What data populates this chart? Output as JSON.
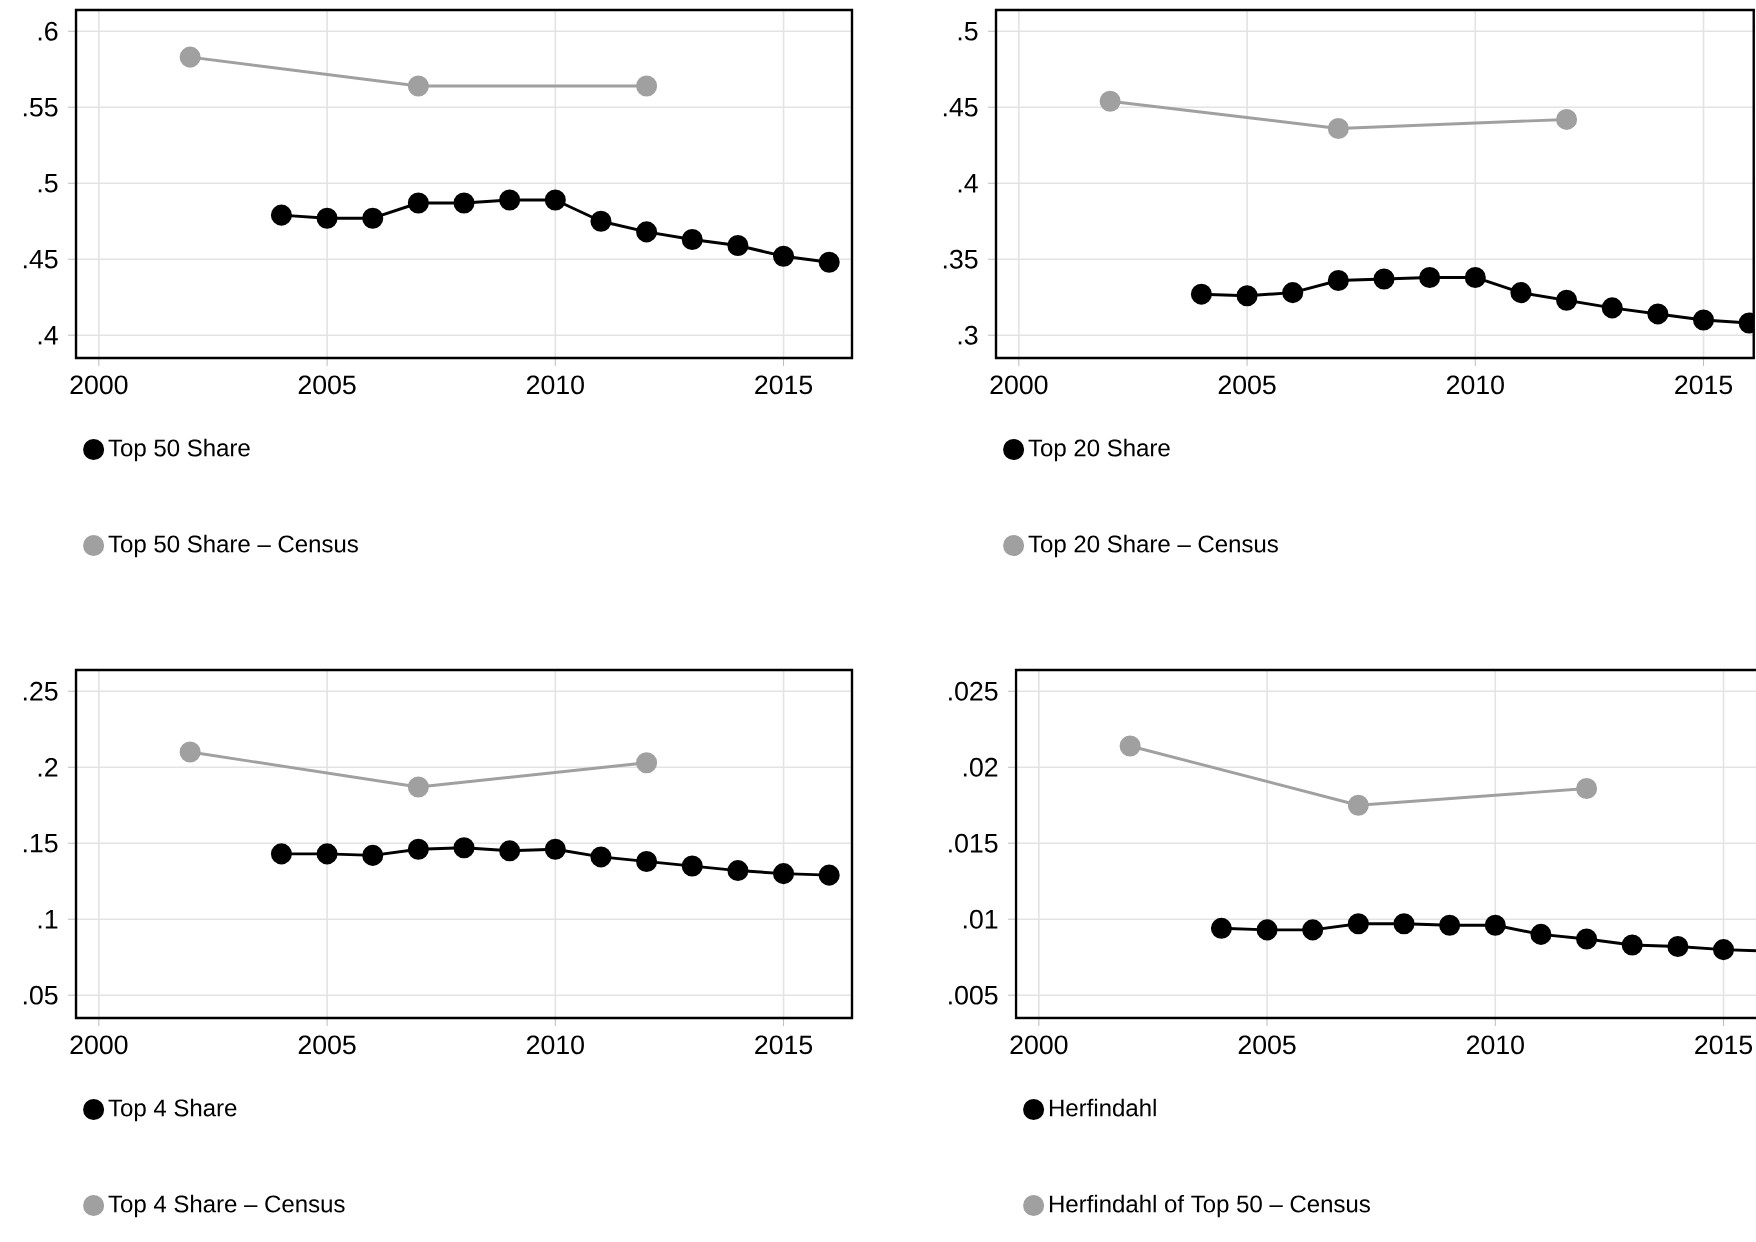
{
  "chart_data": [
    {
      "type": "line",
      "x": [
        2004,
        2005,
        2006,
        2007,
        2008,
        2009,
        2010,
        2011,
        2012,
        2013,
        2014,
        2015,
        2016
      ],
      "series": [
        {
          "name": "Top 50 Share",
          "color": "#000000",
          "values": [
            0.479,
            0.477,
            0.477,
            0.487,
            0.487,
            0.489,
            0.489,
            0.475,
            0.468,
            0.463,
            0.459,
            0.452,
            0.448
          ]
        },
        {
          "name": "Top 50 Share – Census",
          "color": "#a0a0a0",
          "x": [
            2002,
            2007,
            2012
          ],
          "values": [
            0.583,
            0.564,
            0.564
          ]
        }
      ],
      "xlim": [
        1999.5,
        2016.5
      ],
      "xticks": [
        2000,
        2005,
        2010,
        2015
      ],
      "ylim": [
        0.385,
        0.614
      ],
      "yticks": [
        {
          "value": 0.4,
          "label": ".4"
        },
        {
          "value": 0.45,
          "label": ".45"
        },
        {
          "value": 0.5,
          "label": ".5"
        },
        {
          "value": 0.55,
          "label": ".55"
        },
        {
          "value": 0.6,
          "label": ".6"
        }
      ],
      "grid": true,
      "legend": "bottom",
      "marker": "circle"
    },
    {
      "type": "line",
      "x": [
        2004,
        2005,
        2006,
        2007,
        2008,
        2009,
        2010,
        2011,
        2012,
        2013,
        2014,
        2015,
        2016
      ],
      "series": [
        {
          "name": "Top 20 Share",
          "color": "#000000",
          "values": [
            0.327,
            0.326,
            0.328,
            0.336,
            0.337,
            0.338,
            0.338,
            0.328,
            0.323,
            0.318,
            0.314,
            0.31,
            0.308
          ]
        },
        {
          "name": "Top 20 Share – Census",
          "color": "#a0a0a0",
          "x": [
            2002,
            2007,
            2012
          ],
          "values": [
            0.454,
            0.436,
            0.442
          ]
        }
      ],
      "xlim": [
        1999.5,
        2016.1
      ],
      "xticks": [
        2000,
        2005,
        2010,
        2015
      ],
      "ylim": [
        0.285,
        0.514
      ],
      "yticks": [
        {
          "value": 0.3,
          "label": ".3"
        },
        {
          "value": 0.35,
          "label": ".35"
        },
        {
          "value": 0.4,
          "label": ".4"
        },
        {
          "value": 0.45,
          "label": ".45"
        },
        {
          "value": 0.5,
          "label": ".5"
        }
      ],
      "grid": true,
      "legend": "bottom",
      "marker": "circle"
    },
    {
      "type": "line",
      "x": [
        2004,
        2005,
        2006,
        2007,
        2008,
        2009,
        2010,
        2011,
        2012,
        2013,
        2014,
        2015,
        2016
      ],
      "series": [
        {
          "name": "Top 4 Share",
          "color": "#000000",
          "values": [
            0.143,
            0.143,
            0.142,
            0.146,
            0.147,
            0.145,
            0.146,
            0.141,
            0.138,
            0.135,
            0.132,
            0.13,
            0.129
          ]
        },
        {
          "name": "Top 4 Share – Census",
          "color": "#a0a0a0",
          "x": [
            2002,
            2007,
            2012
          ],
          "values": [
            0.21,
            0.187,
            0.203
          ]
        }
      ],
      "xlim": [
        1999.5,
        2016.5
      ],
      "xticks": [
        2000,
        2005,
        2010,
        2015
      ],
      "ylim": [
        0.035,
        0.264
      ],
      "yticks": [
        {
          "value": 0.05,
          "label": ".05"
        },
        {
          "value": 0.1,
          "label": ".1"
        },
        {
          "value": 0.15,
          "label": ".15"
        },
        {
          "value": 0.2,
          "label": ".2"
        },
        {
          "value": 0.25,
          "label": ".25"
        }
      ],
      "grid": true,
      "legend": "bottom",
      "marker": "circle"
    },
    {
      "type": "line",
      "x": [
        2004,
        2005,
        2006,
        2007,
        2008,
        2009,
        2010,
        2011,
        2012,
        2013,
        2014,
        2015,
        2016
      ],
      "series": [
        {
          "name": "Herfindahl",
          "color": "#000000",
          "values": [
            0.0094,
            0.0093,
            0.0093,
            0.0097,
            0.0097,
            0.0096,
            0.0096,
            0.009,
            0.0087,
            0.0083,
            0.0082,
            0.008,
            0.0079
          ]
        },
        {
          "name": "Herfindahl of Top 50 – Census",
          "color": "#a0a0a0",
          "x": [
            2002,
            2007,
            2012
          ],
          "values": [
            0.0214,
            0.0175,
            0.0186
          ]
        }
      ],
      "xlim": [
        1999.5,
        2016.1
      ],
      "xticks": [
        2000,
        2005,
        2010,
        2015
      ],
      "ylim": [
        0.0035,
        0.0264
      ],
      "yticks": [
        {
          "value": 0.005,
          "label": ".005"
        },
        {
          "value": 0.01,
          "label": ".01"
        },
        {
          "value": 0.015,
          "label": ".015"
        },
        {
          "value": 0.02,
          "label": ".02"
        },
        {
          "value": 0.025,
          "label": ".025"
        }
      ],
      "grid": true,
      "legend": "bottom",
      "marker": "circle"
    }
  ]
}
